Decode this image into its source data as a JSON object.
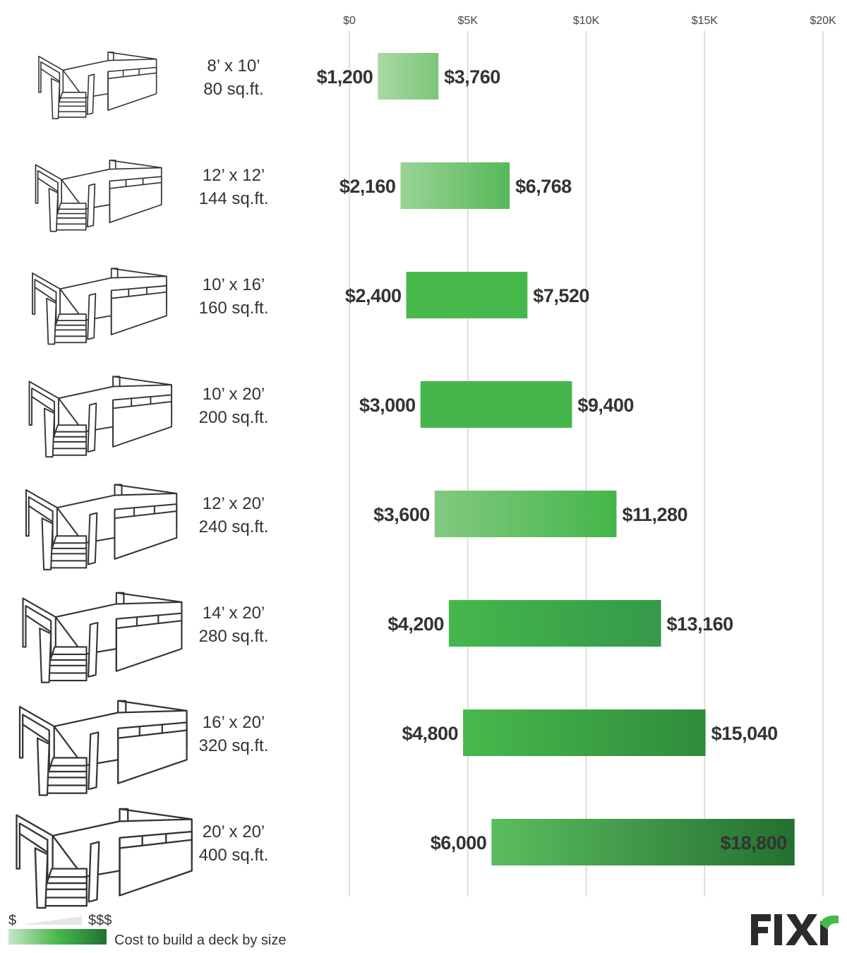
{
  "chart_data": {
    "type": "bar",
    "subtype": "floating-range-horizontal",
    "title": "",
    "xlabel": "",
    "ylabel": "",
    "xlim": [
      0,
      20000
    ],
    "x_ticks": [
      0,
      5000,
      10000,
      15000,
      20000
    ],
    "x_tick_labels": [
      "$0",
      "$5K",
      "$10K",
      "$15K",
      "$20K"
    ],
    "grid": "vertical",
    "categories": [
      {
        "dims": "8’ x 10’",
        "area": "80 sq.ft."
      },
      {
        "dims": "12’ x 12’",
        "area": "144 sq.ft."
      },
      {
        "dims": "10’ x 16’",
        "area": "160 sq.ft."
      },
      {
        "dims": "10’ x 20’",
        "area": "200 sq.ft."
      },
      {
        "dims": "12’ x 20’",
        "area": "240 sq.ft."
      },
      {
        "dims": "14’ x 20’",
        "area": "280 sq.ft."
      },
      {
        "dims": "16’ x 20’",
        "area": "320 sq.ft."
      },
      {
        "dims": "20’ x 20’",
        "area": "400 sq.ft."
      }
    ],
    "low": [
      1200,
      2160,
      2400,
      3000,
      3600,
      4200,
      4800,
      6000
    ],
    "high": [
      3760,
      6768,
      7520,
      9400,
      11280,
      13160,
      15040,
      18800
    ],
    "low_labels": [
      "$1,200",
      "$2,160",
      "$2,400",
      "$3,000",
      "$3,600",
      "$4,200",
      "$4,800",
      "$6,000"
    ],
    "high_labels": [
      "$3,760",
      "$6,768",
      "$7,520",
      "$9,400",
      "$11,280",
      "$13,160",
      "$15,040",
      "$18,800"
    ],
    "bar_colors": [
      [
        "#a8d8a3",
        "#7cc679"
      ],
      [
        "#9ad495",
        "#55b95a"
      ],
      [
        "#48b84d",
        "#46b74b"
      ],
      [
        "#45b64b",
        "#45b64b"
      ],
      [
        "#82c97f",
        "#44b64a"
      ],
      [
        "#45b84b",
        "#35994a"
      ],
      [
        "#47b94c",
        "#2f8c3c"
      ],
      [
        "#5bbd5f",
        "#237030"
      ]
    ],
    "legend": {
      "low_symbol": "$",
      "high_symbol": "$$$",
      "label": "Cost to build a deck by size",
      "gradient": [
        "#c8e6c4",
        "#46b94c",
        "#237030"
      ]
    }
  },
  "brand": {
    "logo": "FIXR",
    "color": "#2b2b2b",
    "accent": "#46b94c"
  }
}
